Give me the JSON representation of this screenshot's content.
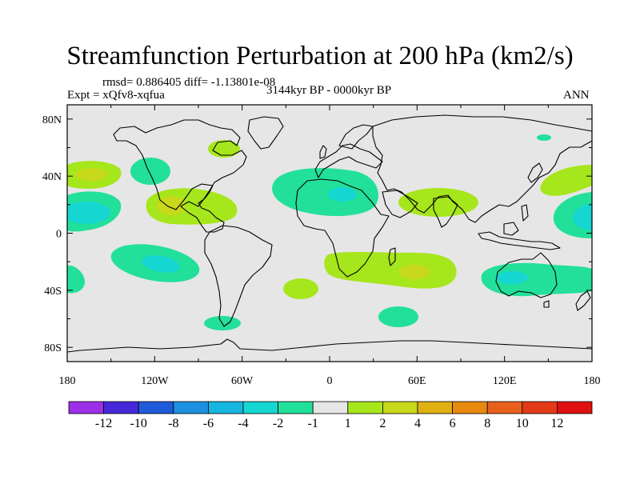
{
  "chart_data": {
    "type": "map",
    "title": "Streamfunction Perturbation at 200 hPa (km2/s)",
    "stats": "rmsd= 0.886405 diff= -1.13801e-08",
    "experiment": "Expt = xQfv8-xqfua",
    "period": "3144kyr BP - 0000kyr BP",
    "season": "ANN",
    "projection": "cylindrical equidistant",
    "lon_range": [
      -180,
      180
    ],
    "lat_range": [
      -90,
      90
    ],
    "x_tick_labels": [
      "180",
      "120W",
      "60W",
      "0",
      "60E",
      "120E",
      "180"
    ],
    "y_tick_labels": [
      "80N",
      "40N",
      "0",
      "40S",
      "80S"
    ],
    "colorbar": {
      "levels": [
        "-12",
        "-10",
        "-8",
        "-6",
        "-4",
        "-2",
        "-1",
        "1",
        "2",
        "4",
        "6",
        "8",
        "10",
        "12"
      ],
      "colors": [
        "#9b30e8",
        "#4628d8",
        "#1f5ad8",
        "#1e90e0",
        "#16b6e0",
        "#15d6d0",
        "#22e09a",
        "#e6e6e6",
        "#a6e61c",
        "#c8d81a",
        "#e0b012",
        "#e88a10",
        "#e8601c",
        "#e43a18",
        "#e01010"
      ]
    },
    "anomaly_regions": [
      {
        "lon": -172,
        "lat": 42,
        "level": "1 to 2"
      },
      {
        "lon": -165,
        "lat": 44,
        "level": "2 to 4"
      },
      {
        "lon": -168,
        "lat": 18,
        "level": "-1 to -2"
      },
      {
        "lon": -166,
        "lat": 16,
        "level": "-2 to -4"
      },
      {
        "lon": -136,
        "lat": -18,
        "level": "-1 to -2"
      },
      {
        "lon": -132,
        "lat": -19,
        "level": "-2 to -4"
      },
      {
        "lon": -178,
        "lat": -30,
        "level": "-1 to -2"
      },
      {
        "lon": -114,
        "lat": 46,
        "level": "-1 to -2"
      },
      {
        "lon": -112,
        "lat": 20,
        "level": "1 to 2"
      },
      {
        "lon": -115,
        "lat": 20,
        "level": "2 to 4"
      },
      {
        "lon": -82,
        "lat": 56,
        "level": "1 to 2"
      },
      {
        "lon": -72,
        "lat": -60,
        "level": "-1 to -2"
      },
      {
        "lon": 3,
        "lat": 30,
        "level": "-1 to -2"
      },
      {
        "lon": 13,
        "lat": 27,
        "level": "-2 to -4"
      },
      {
        "lon": 60,
        "lat": 23,
        "level": "1 to 2"
      },
      {
        "lon": 22,
        "lat": -24,
        "level": "1 to 2"
      },
      {
        "lon": 62,
        "lat": -24,
        "level": "2 to 4"
      },
      {
        "lon": -25,
        "lat": -36,
        "level": "1 to 2"
      },
      {
        "lon": 51,
        "lat": -55,
        "level": "-1 to -2"
      },
      {
        "lon": 150,
        "lat": -26,
        "level": "-1 to -2"
      },
      {
        "lon": 125,
        "lat": -26,
        "level": "-2 to -4"
      },
      {
        "lon": 173,
        "lat": 15,
        "level": "-1 to -2"
      },
      {
        "lon": 176,
        "lat": 14,
        "level": "-2 to -4"
      },
      {
        "lon": 163,
        "lat": 45,
        "level": "1 to 2"
      },
      {
        "lon": 152,
        "lat": 63,
        "level": "-1 to -2"
      }
    ]
  }
}
